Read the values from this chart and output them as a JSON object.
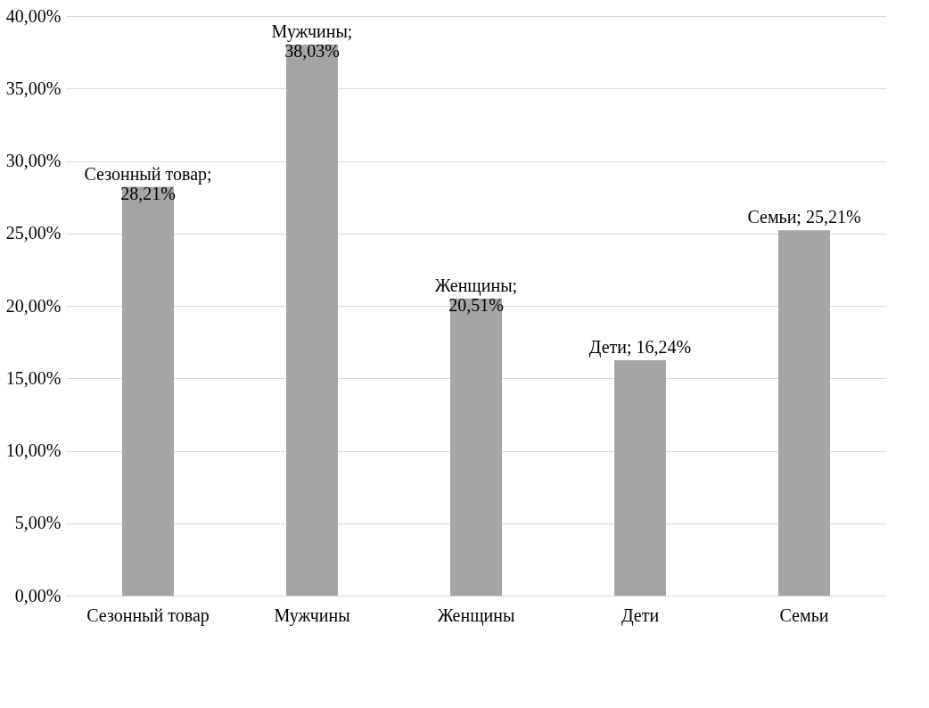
{
  "chart_data": {
    "type": "bar",
    "categories": [
      "Сезонный товар",
      "Мужчины",
      "Женщины",
      "Дети",
      "Семьи"
    ],
    "values": [
      28.21,
      38.03,
      20.51,
      16.24,
      25.21
    ],
    "value_labels": [
      "Сезонный товар; 28,21%",
      "Мужчины; 38,03%",
      "Женщины; 20,51%",
      "Дети; 16,24%",
      "Семьи; 25,21%"
    ],
    "color": "#a5a5a5",
    "ylim": [
      0,
      40
    ],
    "yticks": [
      {
        "value": 0,
        "label": "0,00%"
      },
      {
        "value": 5,
        "label": "5,00%"
      },
      {
        "value": 10,
        "label": "10,00%"
      },
      {
        "value": 15,
        "label": "15,00%"
      },
      {
        "value": 20,
        "label": "20,00%"
      },
      {
        "value": 25,
        "label": "25,00%"
      },
      {
        "value": 30,
        "label": "30,00%"
      },
      {
        "value": 35,
        "label": "35,00%"
      },
      {
        "value": 40,
        "label": "40,00%"
      }
    ],
    "grid": "y"
  }
}
